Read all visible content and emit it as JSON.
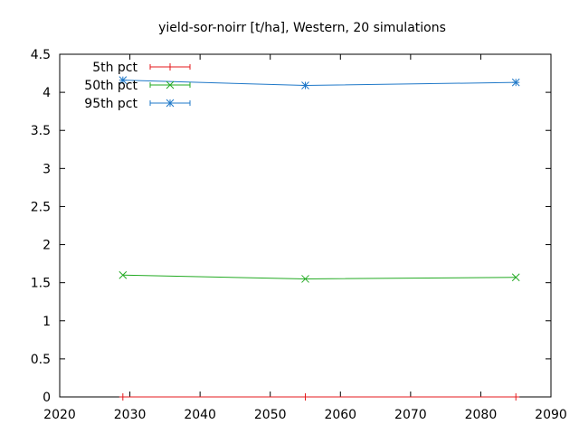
{
  "chart_data": {
    "type": "line",
    "title": "yield-sor-noirr [t/ha], Western, 20 simulations",
    "xlabel": "",
    "ylabel": "",
    "xlim": [
      2020,
      2090
    ],
    "ylim": [
      0,
      4.5
    ],
    "xticks": [
      "2020",
      "2030",
      "2040",
      "2050",
      "2060",
      "2070",
      "2080",
      "2090"
    ],
    "yticks": [
      "0",
      "0.5",
      "1",
      "1.5",
      "2",
      "2.5",
      "3",
      "3.5",
      "4",
      "4.5"
    ],
    "grid": false,
    "legend_position": "top-left",
    "x": [
      2029,
      2055,
      2085
    ],
    "series": [
      {
        "name": "5th pct",
        "values": [
          0,
          0,
          0
        ],
        "color": "#e41a1c",
        "marker": "plus"
      },
      {
        "name": "50th pct",
        "values": [
          1.6,
          1.55,
          1.57
        ],
        "color": "#22aa22",
        "marker": "cross"
      },
      {
        "name": "95th pct",
        "values": [
          4.16,
          4.09,
          4.13
        ],
        "color": "#1f78c8",
        "marker": "star"
      }
    ]
  }
}
